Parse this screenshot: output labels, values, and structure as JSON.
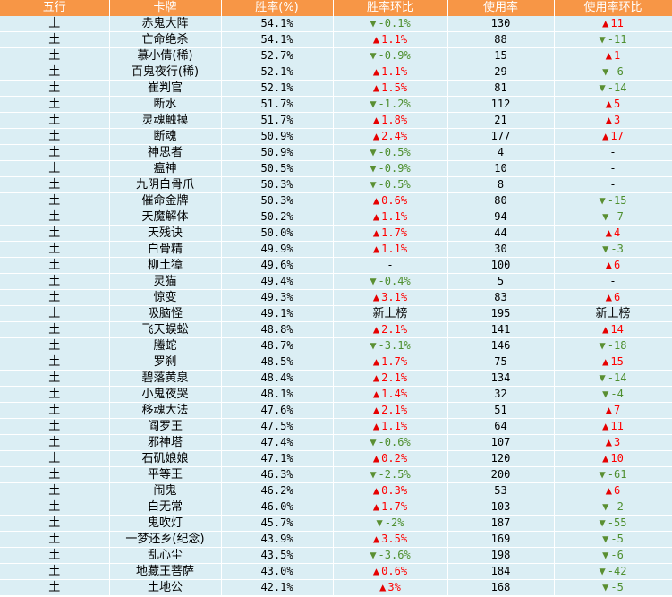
{
  "headers": {
    "element": "五行",
    "card": "卡牌",
    "win_rate": "胜率(%)",
    "win_rate_delta": "胜率环比",
    "usage": "使用率",
    "usage_delta": "使用率环比"
  },
  "colors": {
    "header_bg": "#f79646",
    "row_bg": "#dbeef4",
    "up": "#ff0000",
    "down": "#4e8f2f"
  },
  "chart_data": {
    "type": "table",
    "columns": [
      "五行",
      "卡牌",
      "胜率(%)",
      "胜率环比",
      "使用率",
      "使用率环比"
    ],
    "rows": [
      {
        "element": "土",
        "card": "赤鬼大阵",
        "win_rate": "54.1%",
        "wr_dir": "down",
        "wr_delta": "-0.1%",
        "usage": "130",
        "u_dir": "up",
        "u_delta": "11"
      },
      {
        "element": "土",
        "card": "亡命绝杀",
        "win_rate": "54.1%",
        "wr_dir": "up",
        "wr_delta": "1.1%",
        "usage": "88",
        "u_dir": "down",
        "u_delta": "-11"
      },
      {
        "element": "土",
        "card": "慕小倩(稀)",
        "win_rate": "52.7%",
        "wr_dir": "down",
        "wr_delta": "-0.9%",
        "usage": "15",
        "u_dir": "up",
        "u_delta": "1"
      },
      {
        "element": "土",
        "card": "百鬼夜行(稀)",
        "win_rate": "52.1%",
        "wr_dir": "up",
        "wr_delta": "1.1%",
        "usage": "29",
        "u_dir": "down",
        "u_delta": "-6"
      },
      {
        "element": "土",
        "card": "崔判官",
        "win_rate": "52.1%",
        "wr_dir": "up",
        "wr_delta": "1.5%",
        "usage": "81",
        "u_dir": "down",
        "u_delta": "-14"
      },
      {
        "element": "土",
        "card": "断水",
        "win_rate": "51.7%",
        "wr_dir": "down",
        "wr_delta": "-1.2%",
        "usage": "112",
        "u_dir": "up",
        "u_delta": "5"
      },
      {
        "element": "土",
        "card": "灵魂触摸",
        "win_rate": "51.7%",
        "wr_dir": "up",
        "wr_delta": "1.8%",
        "usage": "21",
        "u_dir": "up",
        "u_delta": "3"
      },
      {
        "element": "土",
        "card": "断魂",
        "win_rate": "50.9%",
        "wr_dir": "up",
        "wr_delta": "2.4%",
        "usage": "177",
        "u_dir": "up",
        "u_delta": "17"
      },
      {
        "element": "土",
        "card": "神思者",
        "win_rate": "50.9%",
        "wr_dir": "down",
        "wr_delta": "-0.5%",
        "usage": "4",
        "u_dir": "none",
        "u_delta": "-"
      },
      {
        "element": "土",
        "card": "瘟神",
        "win_rate": "50.5%",
        "wr_dir": "down",
        "wr_delta": "-0.9%",
        "usage": "10",
        "u_dir": "none",
        "u_delta": "-"
      },
      {
        "element": "土",
        "card": "九阴白骨爪",
        "win_rate": "50.3%",
        "wr_dir": "down",
        "wr_delta": "-0.5%",
        "usage": "8",
        "u_dir": "none",
        "u_delta": "-"
      },
      {
        "element": "土",
        "card": "催命金牌",
        "win_rate": "50.3%",
        "wr_dir": "up",
        "wr_delta": "0.6%",
        "usage": "80",
        "u_dir": "down",
        "u_delta": "-15"
      },
      {
        "element": "土",
        "card": "天魔解体",
        "win_rate": "50.2%",
        "wr_dir": "up",
        "wr_delta": "1.1%",
        "usage": "94",
        "u_dir": "down",
        "u_delta": "-7"
      },
      {
        "element": "土",
        "card": "天残诀",
        "win_rate": "50.0%",
        "wr_dir": "up",
        "wr_delta": "1.7%",
        "usage": "44",
        "u_dir": "up",
        "u_delta": "4"
      },
      {
        "element": "土",
        "card": "白骨精",
        "win_rate": "49.9%",
        "wr_dir": "up",
        "wr_delta": "1.1%",
        "usage": "30",
        "u_dir": "down",
        "u_delta": "-3"
      },
      {
        "element": "土",
        "card": "柳土獐",
        "win_rate": "49.6%",
        "wr_dir": "none",
        "wr_delta": "-",
        "usage": "100",
        "u_dir": "up",
        "u_delta": "6"
      },
      {
        "element": "土",
        "card": "灵猫",
        "win_rate": "49.4%",
        "wr_dir": "down",
        "wr_delta": "-0.4%",
        "usage": "5",
        "u_dir": "none",
        "u_delta": "-"
      },
      {
        "element": "土",
        "card": "惊变",
        "win_rate": "49.3%",
        "wr_dir": "up",
        "wr_delta": "3.1%",
        "usage": "83",
        "u_dir": "up",
        "u_delta": "6"
      },
      {
        "element": "土",
        "card": "吸脑怪",
        "win_rate": "49.1%",
        "wr_dir": "new",
        "wr_delta": "新上榜",
        "usage": "195",
        "u_dir": "new",
        "u_delta": "新上榜"
      },
      {
        "element": "土",
        "card": "飞天蜈蚣",
        "win_rate": "48.8%",
        "wr_dir": "up",
        "wr_delta": "2.1%",
        "usage": "141",
        "u_dir": "up",
        "u_delta": "14"
      },
      {
        "element": "土",
        "card": "螣蛇",
        "win_rate": "48.7%",
        "wr_dir": "down",
        "wr_delta": "-3.1%",
        "usage": "146",
        "u_dir": "down",
        "u_delta": "-18"
      },
      {
        "element": "土",
        "card": "罗刹",
        "win_rate": "48.5%",
        "wr_dir": "up",
        "wr_delta": "1.7%",
        "usage": "75",
        "u_dir": "up",
        "u_delta": "15"
      },
      {
        "element": "土",
        "card": "碧落黄泉",
        "win_rate": "48.4%",
        "wr_dir": "up",
        "wr_delta": "2.1%",
        "usage": "134",
        "u_dir": "down",
        "u_delta": "-14"
      },
      {
        "element": "土",
        "card": "小鬼夜哭",
        "win_rate": "48.1%",
        "wr_dir": "up",
        "wr_delta": "1.4%",
        "usage": "32",
        "u_dir": "down",
        "u_delta": "-4"
      },
      {
        "element": "土",
        "card": "移魂大法",
        "win_rate": "47.6%",
        "wr_dir": "up",
        "wr_delta": "2.1%",
        "usage": "51",
        "u_dir": "up",
        "u_delta": "7"
      },
      {
        "element": "土",
        "card": "阎罗王",
        "win_rate": "47.5%",
        "wr_dir": "up",
        "wr_delta": "1.1%",
        "usage": "64",
        "u_dir": "up",
        "u_delta": "11"
      },
      {
        "element": "土",
        "card": "邪神塔",
        "win_rate": "47.4%",
        "wr_dir": "down",
        "wr_delta": "-0.6%",
        "usage": "107",
        "u_dir": "up",
        "u_delta": "3"
      },
      {
        "element": "土",
        "card": "石矶娘娘",
        "win_rate": "47.1%",
        "wr_dir": "up",
        "wr_delta": "0.2%",
        "usage": "120",
        "u_dir": "up",
        "u_delta": "10"
      },
      {
        "element": "土",
        "card": "平等王",
        "win_rate": "46.3%",
        "wr_dir": "down",
        "wr_delta": "-2.5%",
        "usage": "200",
        "u_dir": "down",
        "u_delta": "-61"
      },
      {
        "element": "土",
        "card": "闹鬼",
        "win_rate": "46.2%",
        "wr_dir": "up",
        "wr_delta": "0.3%",
        "usage": "53",
        "u_dir": "up",
        "u_delta": "6"
      },
      {
        "element": "土",
        "card": "白无常",
        "win_rate": "46.0%",
        "wr_dir": "up",
        "wr_delta": "1.7%",
        "usage": "103",
        "u_dir": "down",
        "u_delta": "-2"
      },
      {
        "element": "土",
        "card": "鬼吹灯",
        "win_rate": "45.7%",
        "wr_dir": "down",
        "wr_delta": "-2%",
        "usage": "187",
        "u_dir": "down",
        "u_delta": "-55"
      },
      {
        "element": "土",
        "card": "一梦还乡(纪念)",
        "win_rate": "43.9%",
        "wr_dir": "up",
        "wr_delta": "3.5%",
        "usage": "169",
        "u_dir": "down",
        "u_delta": "-5"
      },
      {
        "element": "土",
        "card": "乱心尘",
        "win_rate": "43.5%",
        "wr_dir": "down",
        "wr_delta": "-3.6%",
        "usage": "198",
        "u_dir": "down",
        "u_delta": "-6"
      },
      {
        "element": "土",
        "card": "地藏王菩萨",
        "win_rate": "43.0%",
        "wr_dir": "up",
        "wr_delta": "0.6%",
        "usage": "184",
        "u_dir": "down",
        "u_delta": "-42"
      },
      {
        "element": "土",
        "card": "土地公",
        "win_rate": "42.1%",
        "wr_dir": "up",
        "wr_delta": "3%",
        "usage": "168",
        "u_dir": "down",
        "u_delta": "-5"
      }
    ]
  }
}
